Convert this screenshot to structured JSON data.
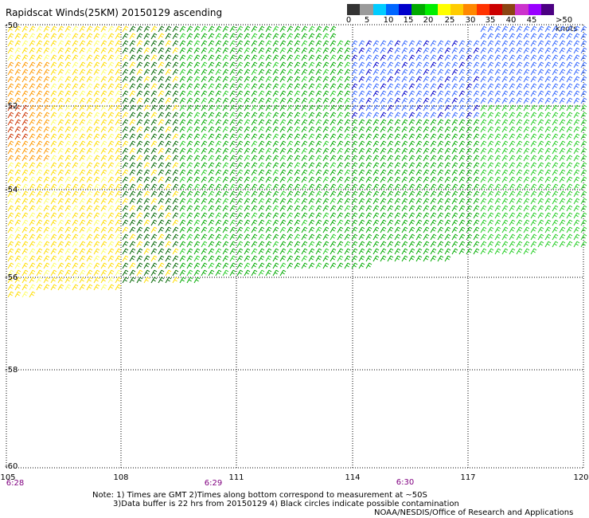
{
  "title": "Rapidscat Winds(25KM) 20150129 ascending",
  "legend": {
    "labels": [
      "0",
      "5",
      "10",
      "15",
      "20",
      "25",
      "30",
      "35",
      "40",
      "45",
      ">50 knots"
    ],
    "colors": [
      "#333333",
      "#9a9a9a",
      "#00ccff",
      "#0066ff",
      "#0000cc",
      "#00aa00",
      "#00ee00",
      "#ffff00",
      "#ffcc00",
      "#ff8800",
      "#ff3300",
      "#cc0000",
      "#8b4513",
      "#cc33cc",
      "#9900ff",
      "#4b0082"
    ]
  },
  "axes": {
    "lat_labels": [
      "-50",
      "-52",
      "-54",
      "-56",
      "-58",
      "-60"
    ],
    "lon_labels": [
      "105",
      "108",
      "111",
      "114",
      "117",
      "120"
    ],
    "time_labels": [
      "6:28",
      "6:29",
      "6:30"
    ]
  },
  "notes": {
    "line1": "Note: 1) Times are GMT 2)Times along bottom correspond to measurement at ~50S",
    "line2": "3)Data buffer is 22 hrs from 20150129 4) Black circles indicate possible contamination",
    "credit": "NOAA/NESDIS/Office of Research and Applications"
  },
  "wind_palette": {
    "orange": "#ff9900",
    "dark_orange": "#cc3300",
    "yellow": "#ffdd00",
    "pale_yellow": "#ffff66",
    "dark_green": "#006600",
    "green": "#00aa00",
    "bright_green": "#22cc22",
    "blue": "#0000cc",
    "light_blue": "#3366ff"
  }
}
